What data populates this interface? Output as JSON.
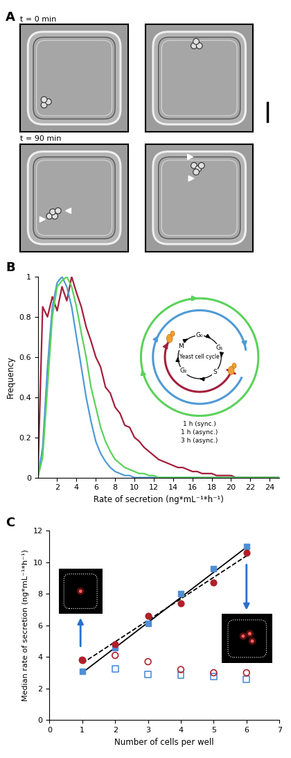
{
  "panel_a": {
    "title": "A",
    "frames": [
      {
        "label": "t = 0 min"
      },
      {
        "label": "t = 90 min"
      }
    ]
  },
  "chart_data": [
    {
      "type": "line",
      "title": "B",
      "x_label": "Rate of secretion (ng*mL⁻¹*h⁻¹)",
      "y_label": "Frequency",
      "x": [
        0,
        0.5,
        1,
        1.5,
        2,
        2.5,
        3,
        3.5,
        4,
        4.5,
        5,
        5.5,
        6,
        6.5,
        7,
        7.5,
        8,
        8.5,
        9,
        9.5,
        10,
        10.5,
        11,
        11.5,
        12,
        12.5,
        13,
        13.5,
        14,
        14.5,
        15,
        15.5,
        16,
        16.5,
        17,
        17.5,
        18,
        18.5,
        19,
        19.5,
        20,
        20.5,
        21,
        21.5,
        22,
        22.5,
        23,
        23.5,
        24,
        24.5,
        25
      ],
      "xlim": [
        0,
        25
      ],
      "xticks": [
        2,
        4,
        6,
        8,
        10,
        12,
        14,
        16,
        18,
        20,
        22,
        24
      ],
      "ylim": [
        0,
        1
      ],
      "yticks": [
        0,
        0.2,
        0.4,
        0.6,
        0.8,
        1
      ],
      "series": [
        {
          "name": "1 h (sync.)",
          "color": "#a31f3c",
          "values": [
            0,
            0.85,
            0.8,
            0.9,
            0.83,
            0.95,
            0.88,
            1.0,
            0.92,
            0.85,
            0.75,
            0.68,
            0.6,
            0.55,
            0.45,
            0.42,
            0.35,
            0.32,
            0.26,
            0.25,
            0.2,
            0.18,
            0.15,
            0.13,
            0.11,
            0.09,
            0.08,
            0.07,
            0.06,
            0.05,
            0.05,
            0.04,
            0.03,
            0.03,
            0.02,
            0.02,
            0.02,
            0.01,
            0.01,
            0.01,
            0.01,
            0,
            0,
            0,
            0,
            0,
            0,
            0,
            0,
            0,
            0
          ]
        },
        {
          "name": "1 h (async.)",
          "color": "#4f9ad6",
          "values": [
            0,
            0.15,
            0.55,
            0.85,
            0.97,
            1.0,
            0.95,
            0.85,
            0.7,
            0.55,
            0.4,
            0.28,
            0.18,
            0.12,
            0.08,
            0.05,
            0.03,
            0.02,
            0.01,
            0.01,
            0,
            0,
            0,
            0,
            0,
            0,
            0,
            0,
            0,
            0,
            0,
            0,
            0,
            0,
            0,
            0,
            0,
            0,
            0,
            0,
            0,
            0,
            0,
            0,
            0,
            0,
            0,
            0,
            0,
            0,
            0
          ]
        },
        {
          "name": "3 h (async.)",
          "color": "#5ad25a",
          "values": [
            0,
            0.1,
            0.45,
            0.8,
            0.95,
            0.98,
            1.0,
            0.95,
            0.85,
            0.72,
            0.6,
            0.45,
            0.35,
            0.25,
            0.18,
            0.13,
            0.09,
            0.07,
            0.05,
            0.04,
            0.03,
            0.02,
            0.02,
            0.01,
            0.01,
            0,
            0,
            0,
            0,
            0,
            0,
            0,
            0,
            0,
            0,
            0,
            0,
            0,
            0,
            0,
            0,
            0,
            0,
            0,
            0,
            0,
            0,
            0,
            0,
            0,
            0
          ]
        }
      ],
      "cycle_diagram": {
        "title": "Yeast cell cycle",
        "phases": [
          "G₀",
          "G₁",
          "S",
          "G₂",
          "M"
        ]
      }
    },
    {
      "type": "scatter",
      "title": "C",
      "x_label": "Number of cells per well",
      "y_label": "Median rate of secretion (ng*mL⁻¹*h⁻¹)",
      "xlim": [
        0,
        7
      ],
      "xticks": [
        0,
        1,
        2,
        3,
        4,
        5,
        6,
        7
      ],
      "ylim": [
        0,
        12
      ],
      "yticks": [
        0,
        2,
        4,
        6,
        8,
        10,
        12
      ],
      "series": [
        {
          "type": "line",
          "x": [
            1,
            6
          ],
          "values": [
            3.0,
            10.95
          ],
          "color": "#000000",
          "line_style": "solid"
        },
        {
          "type": "line",
          "x": [
            1,
            6
          ],
          "values": [
            3.6,
            10.4
          ],
          "color": "#000000",
          "line_style": "dashed"
        },
        {
          "type": "scatter",
          "x": [
            1,
            2,
            3,
            4,
            5,
            6
          ],
          "values": [
            3.1,
            4.6,
            6.1,
            8.0,
            9.6,
            11.0
          ],
          "color": "#4f8fd6",
          "marker": "square"
        },
        {
          "type": "scatter",
          "x": [
            1,
            2,
            3,
            4,
            5,
            6
          ],
          "values": [
            3.8,
            4.8,
            6.6,
            7.4,
            8.7,
            10.6
          ],
          "color": "#b0202a",
          "marker": "circle"
        },
        {
          "type": "scatter",
          "x": [
            2,
            3,
            4,
            5,
            6
          ],
          "values": [
            3.25,
            2.9,
            2.85,
            2.75,
            2.6
          ],
          "color": "#4f8fd6",
          "marker": "open_square"
        },
        {
          "type": "scatter",
          "x": [
            1,
            2,
            3,
            4,
            5,
            6
          ],
          "values": [
            3.8,
            4.1,
            3.7,
            3.2,
            3.0,
            3.0
          ],
          "color": "#b0202a",
          "marker": "open_circle"
        }
      ]
    }
  ]
}
